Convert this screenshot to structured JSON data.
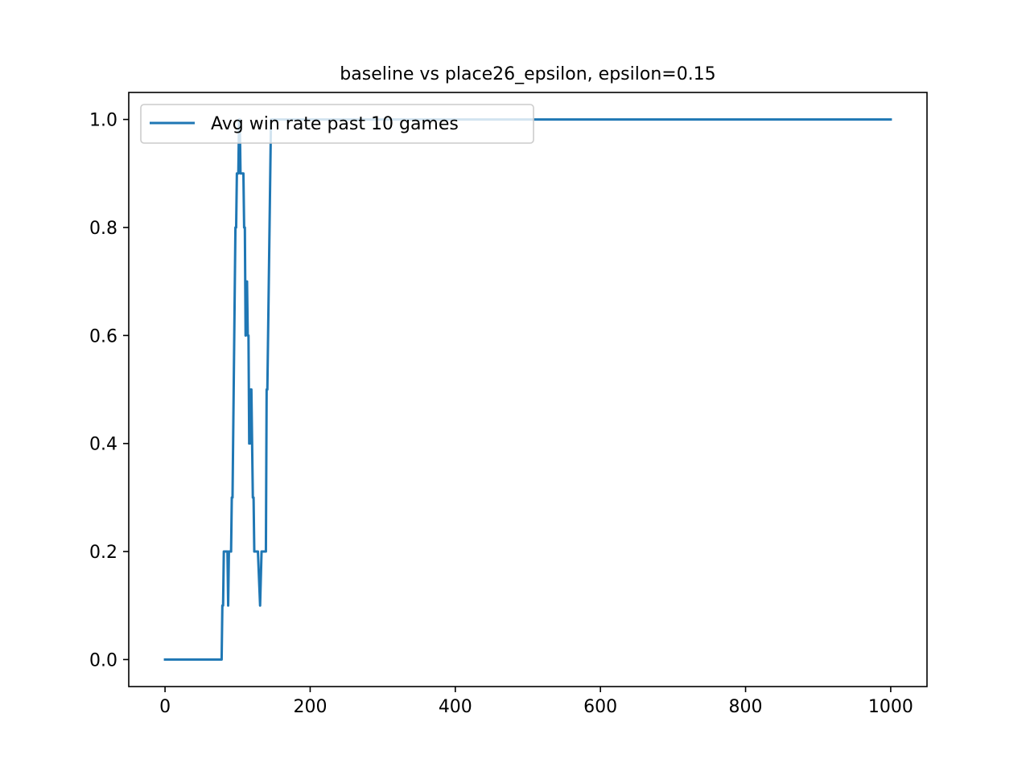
{
  "chart_data": {
    "type": "line",
    "title": "baseline vs place26_epsilon, epsilon=0.15",
    "xlabel": "",
    "ylabel": "",
    "xlim": [
      -50,
      1050
    ],
    "ylim": [
      -0.05,
      1.05
    ],
    "x_ticks": [
      {
        "value": 0,
        "label": "0"
      },
      {
        "value": 200,
        "label": "200"
      },
      {
        "value": 400,
        "label": "400"
      },
      {
        "value": 600,
        "label": "600"
      },
      {
        "value": 800,
        "label": "800"
      },
      {
        "value": 1000,
        "label": "1000"
      }
    ],
    "y_ticks": [
      {
        "value": 0.0,
        "label": "0.0"
      },
      {
        "value": 0.2,
        "label": "0.2"
      },
      {
        "value": 0.4,
        "label": "0.4"
      },
      {
        "value": 0.6,
        "label": "0.6"
      },
      {
        "value": 0.8,
        "label": "0.8"
      },
      {
        "value": 1.0,
        "label": "1.0"
      }
    ],
    "grid": false,
    "legend_position": "upper left",
    "series": [
      {
        "name": "Avg win rate past 10 games",
        "color": "#1f77b4",
        "points": [
          [
            0,
            0.0
          ],
          [
            78,
            0.0
          ],
          [
            79,
            0.1
          ],
          [
            80,
            0.1
          ],
          [
            81,
            0.2
          ],
          [
            86,
            0.2
          ],
          [
            87,
            0.1
          ],
          [
            88,
            0.2
          ],
          [
            91,
            0.2
          ],
          [
            92,
            0.3
          ],
          [
            93,
            0.3
          ],
          [
            97,
            0.8
          ],
          [
            98,
            0.8
          ],
          [
            99,
            0.9
          ],
          [
            101,
            0.9
          ],
          [
            102,
            1.0
          ],
          [
            103,
            1.0
          ],
          [
            104,
            0.9
          ],
          [
            108,
            0.9
          ],
          [
            109,
            0.8
          ],
          [
            110,
            0.8
          ],
          [
            111,
            0.6
          ],
          [
            112,
            0.7
          ],
          [
            113,
            0.7
          ],
          [
            114,
            0.6
          ],
          [
            115,
            0.6
          ],
          [
            116,
            0.4
          ],
          [
            117,
            0.4
          ],
          [
            118,
            0.5
          ],
          [
            119,
            0.5
          ],
          [
            120,
            0.4
          ],
          [
            121,
            0.3
          ],
          [
            122,
            0.3
          ],
          [
            123,
            0.2
          ],
          [
            128,
            0.2
          ],
          [
            131,
            0.1
          ],
          [
            133,
            0.2
          ],
          [
            139,
            0.2
          ],
          [
            140,
            0.5
          ],
          [
            141,
            0.5
          ],
          [
            146,
            1.0
          ],
          [
            1000,
            1.0
          ]
        ]
      }
    ]
  }
}
